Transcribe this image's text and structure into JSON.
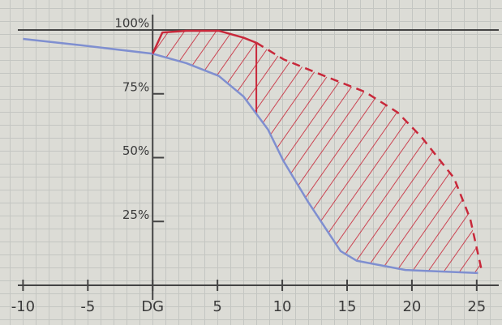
{
  "chart_data": {
    "type": "line",
    "xlim": [
      -10.4,
      26.7
    ],
    "ylim": [
      0,
      100
    ],
    "xticks": [
      -10,
      -5,
      {
        "value": 0,
        "label": "DG"
      },
      5,
      10,
      15,
      20,
      25
    ],
    "yticks": [
      {
        "value": 25,
        "label": "25%"
      },
      {
        "value": 50,
        "label": "50%"
      },
      {
        "value": 75,
        "label": "75%"
      },
      {
        "value": 100,
        "label": "100%"
      }
    ],
    "grid": true,
    "series": [
      {
        "color": "#7f8fd0",
        "x": [
          -10,
          -5.5,
          0,
          2.6,
          5.1,
          7,
          8.9,
          10.1,
          12,
          14.5,
          15.75,
          19.5,
          25.1
        ],
        "values": [
          96.5,
          94,
          90.7,
          87,
          82,
          74,
          61,
          48.6,
          32.6,
          13.4,
          9.6,
          6,
          4.8
        ]
      },
      {
        "color": "#c8283a",
        "x": [
          0,
          0.75,
          2.6,
          5.1,
          7,
          8
        ],
        "values": [
          90.7,
          99,
          99.7,
          99.7,
          97,
          95
        ]
      },
      {
        "color": "#c8283a",
        "dashed": true,
        "x": [
          8,
          10.1,
          13.25,
          16.4,
          18.9,
          20.75,
          23.25,
          24.5,
          25.4
        ],
        "values": [
          95,
          88.5,
          82,
          75.7,
          67.7,
          58,
          42,
          26,
          5.4
        ]
      }
    ]
  }
}
